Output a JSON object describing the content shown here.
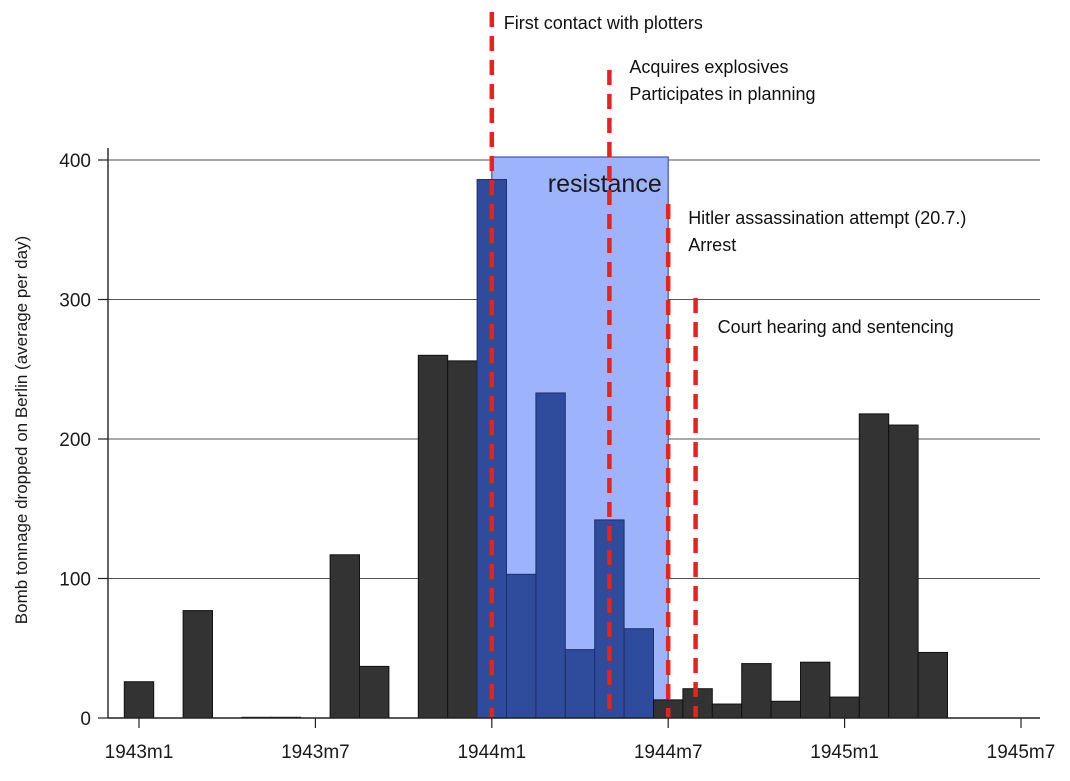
{
  "chart_data": {
    "type": "bar",
    "ylabel": "Bomb tonnage dropped on Berlin (average per day)",
    "xlabel": "",
    "ylim": [
      0,
      400
    ],
    "y_ticks": [
      0,
      100,
      200,
      300,
      400
    ],
    "x_tick_labels": [
      "1943m1",
      "1943m7",
      "1944m1",
      "1944m7",
      "1945m1",
      "1945m7"
    ],
    "grid": true,
    "months": [
      "1943m1",
      "1943m2",
      "1943m3",
      "1943m4",
      "1943m5",
      "1943m6",
      "1943m7",
      "1943m8",
      "1943m9",
      "1943m10",
      "1943m11",
      "1943m12",
      "1944m1",
      "1944m2",
      "1944m3",
      "1944m4",
      "1944m5",
      "1944m6",
      "1944m7",
      "1944m8",
      "1944m9",
      "1944m10",
      "1944m11",
      "1944m12",
      "1945m1",
      "1945m2",
      "1945m3",
      "1945m4"
    ],
    "values": [
      26,
      0,
      77,
      0,
      0.5,
      0.5,
      0,
      117,
      37,
      0,
      260,
      256,
      386,
      103,
      233,
      49,
      142,
      64,
      13,
      21,
      10,
      39,
      12,
      40,
      15,
      218,
      210,
      47
    ],
    "highlight_range": [
      "1944m1",
      "1944m6"
    ],
    "colors": {
      "bar": "#333333",
      "highlight_bar": "#2f4b9b",
      "shade": "#9db3fb",
      "event_line": "#e8231f",
      "grid": "#555555"
    },
    "shaded_region": {
      "label": "resistance",
      "start": "1944m1",
      "end": "1944m7"
    },
    "events": [
      {
        "x": "1944m1",
        "lines": [
          "First contact with plotters"
        ]
      },
      {
        "x": "1944m5",
        "lines": [
          "Acquires explosives",
          "Participates in planning"
        ]
      },
      {
        "x": "1944m7",
        "lines": [
          "Hitler assassination attempt (20.7.)",
          "Arrest"
        ]
      },
      {
        "x": "1944m8",
        "lines": [
          "Court hearing and sentencing"
        ]
      }
    ]
  }
}
